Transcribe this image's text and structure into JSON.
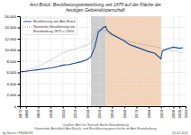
{
  "chart_data": {
    "type": "line",
    "title": "Amt Brück: Bevölkerungsentwicklung seit 1875 auf der Fläche der\nheutigen Gebietskörperschaft",
    "xlim": [
      1875,
      2010
    ],
    "ylim": [
      0,
      16000
    ],
    "xticks": [
      1875,
      1880,
      1890,
      1900,
      1910,
      1920,
      1930,
      1940,
      1950,
      1960,
      1970,
      1980,
      1990,
      2000,
      2005,
      2010
    ],
    "yticks": [
      0,
      {
        "value": 2000,
        "label": "2.000"
      },
      {
        "value": 4000,
        "label": "4.000"
      },
      {
        "value": 6000,
        "label": "6.000"
      },
      {
        "value": 8000,
        "label": "8.000"
      },
      {
        "value": 10000,
        "label": "10.000"
      },
      {
        "value": 12000,
        "label": "12.000"
      },
      {
        "value": 14000,
        "label": "14.000"
      },
      {
        "value": 16000,
        "label": "16.000"
      }
    ],
    "grid": true,
    "legend": "upper left",
    "spans": [
      {
        "start": 1933,
        "end": 1945,
        "color": "#c0c0c0"
      },
      {
        "start": 1945,
        "end": 1990,
        "color": "#f0c8a8"
      }
    ],
    "series": [
      {
        "name": "Bevölkerung von Amt Brück",
        "color": "#1a4a8a",
        "line_style": "solid",
        "x": [
          1875,
          1880,
          1885,
          1890,
          1895,
          1900,
          1905,
          1910,
          1915,
          1919,
          1925,
          1930,
          1933,
          1936,
          1939,
          1943,
          1945,
          1946,
          1950,
          1955,
          1960,
          1964,
          1970,
          1975,
          1980,
          1985,
          1990,
          1991,
          1995,
          2000,
          2005,
          2008
        ],
        "values": [
          6100,
          6200,
          6350,
          6500,
          6650,
          6800,
          7000,
          7300,
          7400,
          7600,
          7900,
          8300,
          8800,
          10500,
          13200,
          14000,
          14200,
          13500,
          12800,
          12200,
          11600,
          11000,
          10500,
          10100,
          9700,
          9400,
          8400,
          9800,
          10200,
          10500,
          10300,
          10400
        ]
      },
      {
        "name": "Natürliche Bevölkerung von\nBrandenburg 1875 = 100%",
        "color": "#a09090",
        "line_style": "dotted",
        "x": [
          1875,
          1880,
          1885,
          1890,
          1895,
          1900,
          1905,
          1910,
          1915,
          1919,
          1925,
          1930,
          1933,
          1936,
          1939,
          1943,
          1945,
          1946,
          1950,
          1955,
          1960,
          1964,
          1970,
          1975,
          1980,
          1985,
          1990,
          1995,
          2000,
          2005,
          2008
        ],
        "values": [
          6100,
          6350,
          6700,
          7100,
          7600,
          8200,
          8800,
          9500,
          9900,
          10100,
          10500,
          10900,
          11300,
          12500,
          13800,
          13600,
          13300,
          13000,
          12600,
          12200,
          11800,
          11500,
          11200,
          11000,
          10800,
          10600,
          10300,
          10000,
          9800,
          9600,
          9500
        ]
      }
    ],
    "annotations": [
      "Quellen: Amt für Statistik Berlin-Brandenburg",
      "Gemeinde-Amtsblatt Amt Brück; und Bevölkerungsgeschichte im Amt Brandenburg",
      "by Natrix / FBZB/GR",
      "24.02.2011"
    ]
  }
}
